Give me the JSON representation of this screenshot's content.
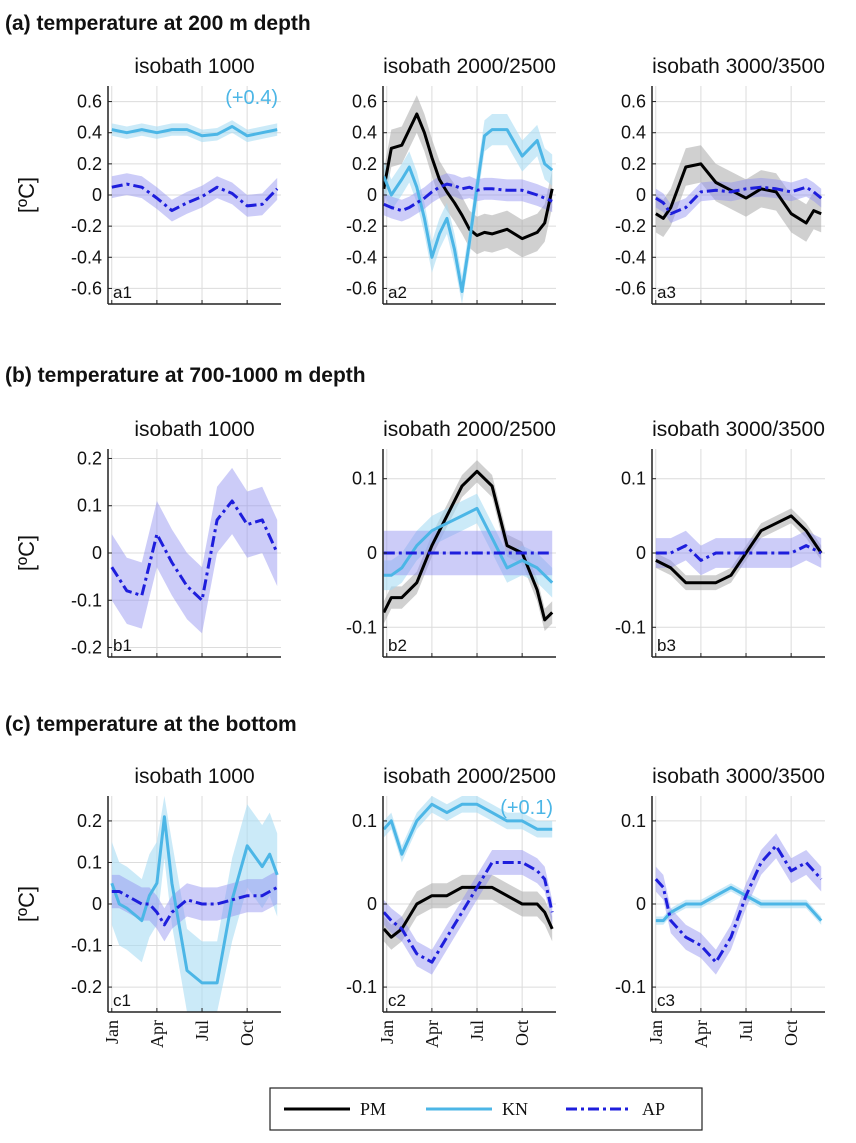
{
  "colors": {
    "PM": "#000000",
    "KN": "#4cb6e6",
    "AP": "#1e1edc",
    "AP_band": "#8f8ff0",
    "KN_band": "#a8dcf4",
    "PM_band": "#aaaaaa",
    "grid": "#dcdcdc"
  },
  "sections": [
    {
      "title": "(a) temperature at 200 m depth"
    },
    {
      "title": "(b) temperature at 700-1000 m depth"
    },
    {
      "title": "(c) temperature at the bottom"
    }
  ],
  "ylabel": "[ºC]",
  "months": [
    "Jan",
    "Apr",
    "Jul",
    "Oct"
  ],
  "legend": [
    "PM",
    "KN",
    "AP"
  ],
  "chart_data": [
    {
      "id": "a1",
      "type": "line",
      "title": "isobath 1000",
      "label": "a1",
      "ylim": [
        -0.7,
        0.7
      ],
      "yticks": [
        0.6,
        0.4,
        0.2,
        0,
        -0.2,
        -0.4,
        -0.6
      ],
      "ytick_labels": [
        "0.6",
        "0.4",
        "0.2",
        "0",
        "-0.2",
        "-0.4",
        "-0.6"
      ],
      "x": [
        1,
        2,
        3,
        4,
        5,
        6,
        7,
        8,
        9,
        10,
        11,
        12
      ],
      "note": {
        "text": "(+0.4)",
        "series": "KN"
      },
      "series": [
        {
          "name": "KN",
          "values": [
            0.42,
            0.4,
            0.42,
            0.4,
            0.42,
            0.42,
            0.38,
            0.39,
            0.44,
            0.38,
            0.4,
            0.42
          ],
          "band": 0.04
        },
        {
          "name": "AP",
          "values": [
            0.05,
            0.07,
            0.05,
            -0.02,
            -0.1,
            -0.05,
            -0.01,
            0.05,
            0.01,
            -0.07,
            -0.06,
            0.04
          ],
          "band": 0.07
        }
      ]
    },
    {
      "id": "a2",
      "type": "line",
      "title": "isobath 2000/2500",
      "label": "a2",
      "ylim": [
        -0.7,
        0.7
      ],
      "yticks": [
        0.6,
        0.4,
        0.2,
        0,
        -0.2,
        -0.4,
        -0.6
      ],
      "ytick_labels": [
        "0.6",
        "0.4",
        "0.2",
        "0",
        "-0.2",
        "-0.4",
        "-0.6"
      ],
      "x": [
        0.8,
        1.3,
        2,
        2.5,
        3,
        3.5,
        4,
        4.5,
        5,
        5.5,
        6,
        6.5,
        7,
        7.5,
        8,
        9,
        10,
        11,
        11.5,
        12
      ],
      "series": [
        {
          "name": "PM",
          "values": [
            0.04,
            0.3,
            0.32,
            0.42,
            0.52,
            0.4,
            0.24,
            0.1,
            0.02,
            -0.05,
            -0.13,
            -0.22,
            -0.26,
            -0.24,
            -0.25,
            -0.22,
            -0.28,
            -0.24,
            -0.18,
            0.04
          ],
          "band": 0.12
        },
        {
          "name": "KN",
          "values": [
            0.12,
            0.0,
            0.1,
            0.18,
            0.05,
            -0.15,
            -0.4,
            -0.25,
            -0.15,
            -0.35,
            -0.62,
            -0.3,
            0.05,
            0.38,
            0.42,
            0.42,
            0.25,
            0.35,
            0.2,
            0.16
          ],
          "band": 0.1
        },
        {
          "name": "AP",
          "values": [
            -0.06,
            -0.08,
            -0.1,
            -0.08,
            -0.05,
            -0.02,
            0.02,
            0.05,
            0.07,
            0.06,
            0.04,
            0.05,
            0.03,
            0.04,
            0.04,
            0.03,
            0.03,
            0.0,
            -0.02,
            -0.04
          ],
          "band": 0.07
        }
      ]
    },
    {
      "id": "a3",
      "type": "line",
      "title": "isobath 3000/3500",
      "label": "a3",
      "ylim": [
        -0.7,
        0.7
      ],
      "yticks": [
        0.6,
        0.4,
        0.2,
        0,
        -0.2,
        -0.4,
        -0.6
      ],
      "ytick_labels": [
        "0.6",
        "0.4",
        "0.2",
        "0",
        "-0.2",
        "-0.4",
        "-0.6"
      ],
      "x": [
        1,
        1.5,
        2,
        3,
        4,
        5,
        6,
        7,
        8,
        9,
        10,
        11,
        11.5,
        12
      ],
      "series": [
        {
          "name": "PM",
          "values": [
            -0.12,
            -0.15,
            -0.08,
            0.18,
            0.2,
            0.08,
            0.03,
            -0.02,
            0.04,
            0.02,
            -0.12,
            -0.18,
            -0.1,
            -0.12
          ],
          "band": 0.12
        },
        {
          "name": "AP",
          "values": [
            -0.02,
            -0.05,
            -0.12,
            -0.08,
            0.02,
            0.03,
            0.02,
            0.04,
            0.05,
            0.04,
            0.02,
            0.05,
            0.02,
            -0.02
          ],
          "band": 0.06
        }
      ]
    },
    {
      "id": "b1",
      "type": "line",
      "title": "isobath 1000",
      "label": "b1",
      "ylim": [
        -0.22,
        0.22
      ],
      "yticks": [
        0.2,
        0.1,
        0,
        -0.1,
        -0.2
      ],
      "ytick_labels": [
        "0.2",
        "0.1",
        "0",
        "-0.1",
        "-0.2"
      ],
      "x": [
        1,
        2,
        3,
        4,
        5,
        6,
        7,
        8,
        9,
        10,
        11,
        12
      ],
      "series": [
        {
          "name": "AP",
          "values": [
            -0.03,
            -0.08,
            -0.09,
            0.04,
            -0.02,
            -0.07,
            -0.1,
            0.07,
            0.11,
            0.06,
            0.07,
            0.0
          ],
          "band": 0.07
        }
      ]
    },
    {
      "id": "b2",
      "type": "line",
      "title": "isobath 2000/2500",
      "label": "b2",
      "ylim": [
        -0.14,
        0.14
      ],
      "yticks": [
        0.1,
        0,
        -0.1
      ],
      "ytick_labels": [
        "0.1",
        "0",
        "-0.1"
      ],
      "x": [
        0.8,
        1.3,
        2,
        3,
        4,
        5,
        6,
        7,
        8,
        9,
        10,
        11,
        11.5,
        12
      ],
      "series": [
        {
          "name": "PM",
          "values": [
            -0.08,
            -0.06,
            -0.06,
            -0.04,
            0.01,
            0.05,
            0.09,
            0.11,
            0.09,
            0.01,
            0.0,
            -0.05,
            -0.09,
            -0.08
          ],
          "band": 0.015
        },
        {
          "name": "KN",
          "values": [
            -0.03,
            -0.03,
            -0.02,
            0.01,
            0.03,
            0.04,
            0.05,
            0.06,
            0.02,
            -0.02,
            -0.01,
            -0.02,
            -0.03,
            -0.04
          ],
          "band": 0.02
        },
        {
          "name": "AP",
          "values": [
            0.0,
            0.0,
            0.0,
            0.0,
            0.0,
            0.0,
            0.0,
            0.0,
            0.0,
            0.0,
            0.0,
            0.0,
            0.0,
            0.0
          ],
          "band": 0.03
        }
      ]
    },
    {
      "id": "b3",
      "type": "line",
      "title": "isobath 3000/3500",
      "label": "b3",
      "ylim": [
        -0.14,
        0.14
      ],
      "yticks": [
        0.1,
        0,
        -0.1
      ],
      "ytick_labels": [
        "0.1",
        "0",
        "-0.1"
      ],
      "x": [
        1,
        2,
        3,
        4,
        5,
        6,
        7,
        8,
        9,
        10,
        11,
        12
      ],
      "series": [
        {
          "name": "PM",
          "values": [
            -0.01,
            -0.02,
            -0.04,
            -0.04,
            -0.04,
            -0.03,
            0.0,
            0.03,
            0.04,
            0.05,
            0.03,
            0.0
          ],
          "band": 0.01
        },
        {
          "name": "AP",
          "values": [
            0.0,
            0.0,
            0.01,
            -0.01,
            0.0,
            0.0,
            0.0,
            0.0,
            0.0,
            0.0,
            0.01,
            0.0
          ],
          "band": 0.02
        }
      ]
    },
    {
      "id": "c1",
      "type": "line",
      "title": "isobath 1000",
      "label": "c1",
      "ylim": [
        -0.26,
        0.26
      ],
      "yticks": [
        0.2,
        0.1,
        0,
        -0.1,
        -0.2
      ],
      "ytick_labels": [
        "0.2",
        "0.1",
        "0",
        "-0.1",
        "-0.2"
      ],
      "x": [
        1,
        1.5,
        2,
        3,
        3.5,
        4,
        4.5,
        5,
        6,
        7,
        8,
        9,
        10,
        11,
        11.5,
        12
      ],
      "series": [
        {
          "name": "KN",
          "values": [
            0.05,
            0.0,
            -0.01,
            -0.04,
            0.02,
            0.05,
            0.21,
            0.05,
            -0.16,
            -0.19,
            -0.19,
            0.01,
            0.14,
            0.09,
            0.12,
            0.07
          ],
          "band": 0.1
        },
        {
          "name": "AP",
          "values": [
            0.03,
            0.03,
            0.02,
            0.0,
            0.0,
            -0.02,
            -0.05,
            -0.02,
            0.01,
            0.0,
            0.0,
            0.01,
            0.02,
            0.02,
            0.03,
            0.04
          ],
          "band": 0.04
        }
      ]
    },
    {
      "id": "c2",
      "type": "line",
      "title": "isobath 2000/2500",
      "label": "c2",
      "ylim": [
        -0.13,
        0.13
      ],
      "yticks": [
        0.1,
        0,
        -0.1
      ],
      "ytick_labels": [
        "0.1",
        "0",
        "-0.1"
      ],
      "x": [
        0.8,
        1.3,
        2,
        3,
        4,
        5,
        6,
        7,
        8,
        9,
        10,
        11,
        11.5,
        12
      ],
      "note": {
        "text": "(+0.1)",
        "series": "KN"
      },
      "series": [
        {
          "name": "PM",
          "values": [
            -0.03,
            -0.04,
            -0.03,
            0.0,
            0.01,
            0.01,
            0.02,
            0.02,
            0.02,
            0.01,
            0.0,
            0.0,
            -0.01,
            -0.03
          ],
          "band": 0.015
        },
        {
          "name": "KN",
          "values": [
            0.09,
            0.1,
            0.06,
            0.1,
            0.12,
            0.11,
            0.12,
            0.12,
            0.11,
            0.1,
            0.1,
            0.09,
            0.09,
            0.09
          ],
          "band": 0.01
        },
        {
          "name": "AP",
          "values": [
            -0.01,
            -0.02,
            -0.03,
            -0.06,
            -0.07,
            -0.04,
            -0.01,
            0.02,
            0.05,
            0.05,
            0.05,
            0.04,
            0.03,
            -0.01
          ],
          "band": 0.015
        }
      ]
    },
    {
      "id": "c3",
      "type": "line",
      "title": "isobath 3000/3500",
      "label": "c3",
      "ylim": [
        -0.13,
        0.13
      ],
      "yticks": [
        0.1,
        0,
        -0.1
      ],
      "ytick_labels": [
        "0.1",
        "0",
        "-0.1"
      ],
      "x": [
        1,
        1.5,
        2,
        3,
        4,
        5,
        6,
        7,
        8,
        9,
        10,
        11,
        11.5,
        12
      ],
      "series": [
        {
          "name": "KN",
          "values": [
            -0.02,
            -0.02,
            -0.01,
            0.0,
            0.0,
            0.01,
            0.02,
            0.01,
            0.0,
            0.0,
            0.0,
            0.0,
            -0.01,
            -0.02
          ],
          "band": 0.005
        },
        {
          "name": "AP",
          "values": [
            0.03,
            0.02,
            -0.02,
            -0.04,
            -0.05,
            -0.07,
            -0.04,
            0.01,
            0.05,
            0.07,
            0.04,
            0.05,
            0.04,
            0.03
          ],
          "band": 0.015
        }
      ]
    }
  ]
}
